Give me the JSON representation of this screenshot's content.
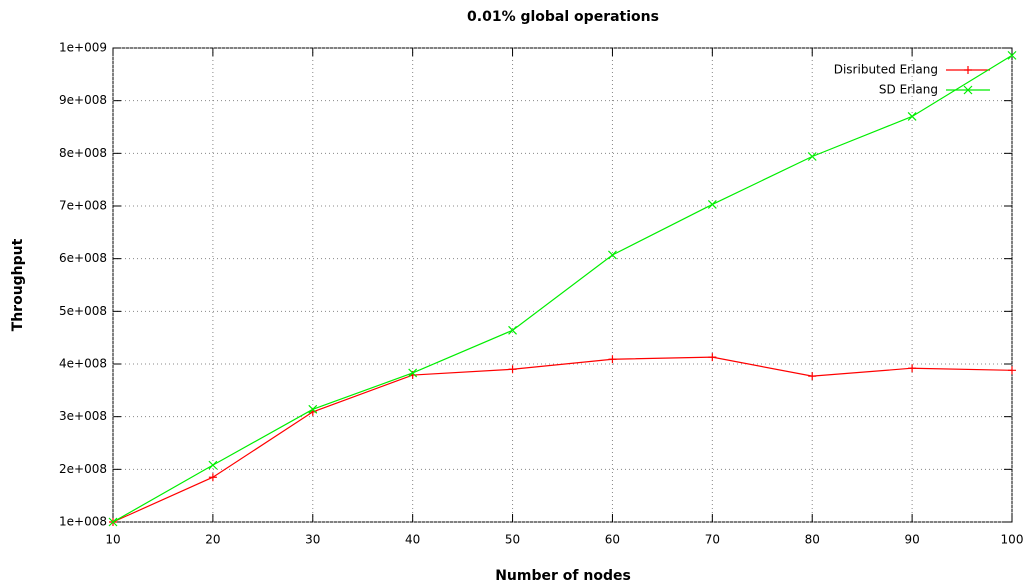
{
  "chart_data": {
    "type": "line",
    "title": "0.01% global operations",
    "x_label": "Number of nodes",
    "y_label": "Throughput",
    "x": [
      10,
      20,
      30,
      40,
      50,
      60,
      70,
      80,
      90,
      100
    ],
    "series": [
      {
        "name": "Disributed Erlang",
        "color": "#ff0000",
        "marker": "plus",
        "values": [
          100000000,
          185000000,
          309000000,
          379000000,
          390000000,
          409000000,
          413000000,
          377000000,
          392000000,
          388000000
        ]
      },
      {
        "name": "SD Erlang",
        "color": "#00ee00",
        "marker": "cross",
        "values": [
          100000000,
          208000000,
          314000000,
          383000000,
          464000000,
          607000000,
          703000000,
          794000000,
          870000000,
          986000000
        ]
      }
    ],
    "xlim": [
      10,
      100
    ],
    "xticks": [
      10,
      20,
      30,
      40,
      50,
      60,
      70,
      80,
      90,
      100
    ],
    "ylim": [
      100000000,
      1000000000
    ],
    "yticks": [
      {
        "value": 100000000,
        "label": "1e+008"
      },
      {
        "value": 200000000,
        "label": "2e+008"
      },
      {
        "value": 300000000,
        "label": "3e+008"
      },
      {
        "value": 400000000,
        "label": "4e+008"
      },
      {
        "value": 500000000,
        "label": "5e+008"
      },
      {
        "value": 600000000,
        "label": "6e+008"
      },
      {
        "value": 700000000,
        "label": "7e+008"
      },
      {
        "value": 800000000,
        "label": "8e+008"
      },
      {
        "value": 900000000,
        "label": "9e+008"
      },
      {
        "value": 1000000000,
        "label": "1e+009"
      }
    ],
    "grid": true,
    "legend": "top right"
  }
}
